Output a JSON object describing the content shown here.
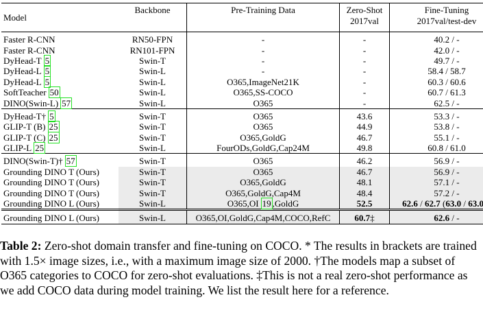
{
  "table": {
    "header": [
      [
        "Model"
      ],
      [
        "Backbone"
      ],
      [
        "Pre-Training Data"
      ],
      [
        "Zero-Shot",
        "2017val"
      ],
      [
        "Fine-Tuning",
        "2017val/test-dev"
      ]
    ],
    "groups": [
      [
        {
          "cells": [
            [
              "Faster R-CNN"
            ],
            [
              "RN50-FPN"
            ],
            [
              "-"
            ],
            [
              "-"
            ],
            [
              "40.2 / -"
            ]
          ]
        },
        {
          "cells": [
            [
              "Faster R-CNN"
            ],
            [
              "RN101-FPN"
            ],
            [
              "-"
            ],
            [
              "-"
            ],
            [
              "42.0 / -"
            ]
          ]
        },
        {
          "cells": [
            [
              "DyHead-T",
              {
                "cite": "5"
              }
            ],
            [
              "Swin-T"
            ],
            [
              "-"
            ],
            [
              "-"
            ],
            [
              "49.7 / -"
            ]
          ]
        },
        {
          "cells": [
            [
              "DyHead-L",
              {
                "cite": "5"
              }
            ],
            [
              "Swin-L"
            ],
            [
              "-"
            ],
            [
              "-"
            ],
            [
              "58.4 / 58.7"
            ]
          ]
        },
        {
          "cells": [
            [
              "DyHead-L",
              {
                "cite": "5"
              }
            ],
            [
              "Swin-L"
            ],
            [
              "O365,ImageNet21K"
            ],
            [
              "-"
            ],
            [
              "60.3 / 60.6"
            ]
          ]
        },
        {
          "cells": [
            [
              "SoftTeacher",
              {
                "cite": "50"
              }
            ],
            [
              "Swin-L"
            ],
            [
              "O365,SS-COCO"
            ],
            [
              "-"
            ],
            [
              "60.7 / 61.3"
            ]
          ]
        },
        {
          "cells": [
            [
              "DINO(Swin-L)",
              {
                "cite": "57"
              }
            ],
            [
              "Swin-L"
            ],
            [
              "O365"
            ],
            [
              "-"
            ],
            [
              "62.5 / -"
            ]
          ]
        }
      ],
      [
        {
          "cells": [
            [
              "DyHead-T†",
              {
                "cite": "5"
              }
            ],
            [
              "Swin-T"
            ],
            [
              "O365"
            ],
            [
              "43.6"
            ],
            [
              "53.3 / -"
            ]
          ]
        },
        {
          "cells": [
            [
              "GLIP-T (B)",
              {
                "cite": "25"
              }
            ],
            [
              "Swin-T"
            ],
            [
              "O365"
            ],
            [
              "44.9"
            ],
            [
              "53.8 / -"
            ]
          ]
        },
        {
          "cells": [
            [
              "GLIP-T (C)",
              {
                "cite": "25"
              }
            ],
            [
              "Swin-T"
            ],
            [
              "O365,GoldG"
            ],
            [
              "46.7"
            ],
            [
              "55.1 / -"
            ]
          ]
        },
        {
          "cells": [
            [
              "GLIP-L",
              {
                "cite": "25"
              }
            ],
            [
              "Swin-L"
            ],
            [
              "FourODs,GoldG,Cap24M"
            ],
            [
              "49.8"
            ],
            [
              "60.8 / 61.0"
            ]
          ]
        }
      ],
      [
        {
          "cells": [
            [
              "DINO(Swin-T)†",
              {
                "cite": "57"
              }
            ],
            [
              "Swin-T"
            ],
            [
              "O365"
            ],
            [
              "46.2"
            ],
            [
              "56.9 / -"
            ]
          ]
        },
        {
          "cells": [
            [
              "Grounding DINO T (Ours)"
            ],
            [
              "Swin-T"
            ],
            [
              "O365"
            ],
            [
              "46.7"
            ],
            [
              "56.9 / -"
            ]
          ],
          "shaded": true
        },
        {
          "cells": [
            [
              "Grounding DINO T (Ours)"
            ],
            [
              "Swin-T"
            ],
            [
              "O365,GoldG"
            ],
            [
              "48.1"
            ],
            [
              "57.1 / -"
            ]
          ],
          "shaded": true
        },
        {
          "cells": [
            [
              "Grounding DINO T (Ours)"
            ],
            [
              "Swin-T"
            ],
            [
              "O365,GoldG,Cap4M"
            ],
            [
              "48.4"
            ],
            [
              "57.2 / -"
            ]
          ],
          "shaded": true
        },
        {
          "cells": [
            [
              "Grounding DINO L (Ours)"
            ],
            [
              "Swin-L"
            ],
            [
              "O365,OI",
              {
                "cite": "19"
              },
              ",GoldG"
            ],
            [
              {
                "text": "52.5",
                "bold": true
              }
            ],
            [
              {
                "text": "62.6",
                "bold": true
              },
              " / ",
              {
                "text": "62.7",
                "bold": true
              },
              " (",
              {
                "text": "63.0",
                "bold": true
              },
              " / ",
              {
                "text": "63.0",
                "bold": true
              },
              ")*"
            ]
          ],
          "shaded": true
        }
      ],
      [
        {
          "cells": [
            [
              "Grounding DINO L (Ours)"
            ],
            [
              "Swin-L"
            ],
            [
              "O365,OI,GoldG,Cap4M,COCO,RefC"
            ],
            [
              {
                "text": "60.7",
                "bold": true
              },
              "‡"
            ],
            [
              {
                "text": "62.6",
                "bold": true
              },
              " / -"
            ]
          ],
          "shaded": true
        }
      ]
    ]
  },
  "caption": {
    "label": "Table 2:",
    "text": "Zero-shot domain transfer and fine-tuning on COCO. * The results in brackets are trained with 1.5× image sizes, i.e., with a maximum image size of 2000. †The models map a subset of O365 categories to COCO for zero-shot evaluations. ‡This is not a real zero-shot performance as we add COCO data during model training. We list the result here for a reference."
  }
}
